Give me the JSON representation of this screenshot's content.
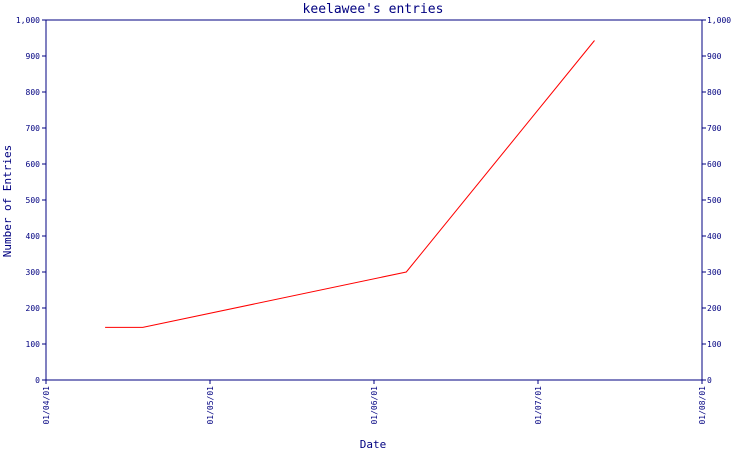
{
  "chart_data": {
    "type": "line",
    "title": "keelawee's entries",
    "xlabel": "Date",
    "ylabel": "Number of Entries",
    "x_ticks": [
      "01/04/01",
      "01/05/01",
      "01/06/01",
      "01/07/01",
      "01/08/01"
    ],
    "xlim": [
      "2001-04-01",
      "2001-08-01"
    ],
    "ylim": [
      0,
      1000
    ],
    "y_ticks": [
      0,
      100,
      200,
      300,
      400,
      500,
      600,
      700,
      800,
      900,
      1000
    ],
    "y_tick_labels": [
      "0",
      "100",
      "200",
      "300",
      "400",
      "500",
      "600",
      "700",
      "800",
      "900",
      "1,000"
    ],
    "series": [
      {
        "color": "#ff0000",
        "x": [
          "2001-04-12",
          "2001-04-19",
          "2001-06-07",
          "2001-07-12"
        ],
        "y": [
          146,
          146,
          300,
          943
        ]
      }
    ],
    "axis_color": "#000080",
    "grid": false,
    "legend": "none"
  }
}
